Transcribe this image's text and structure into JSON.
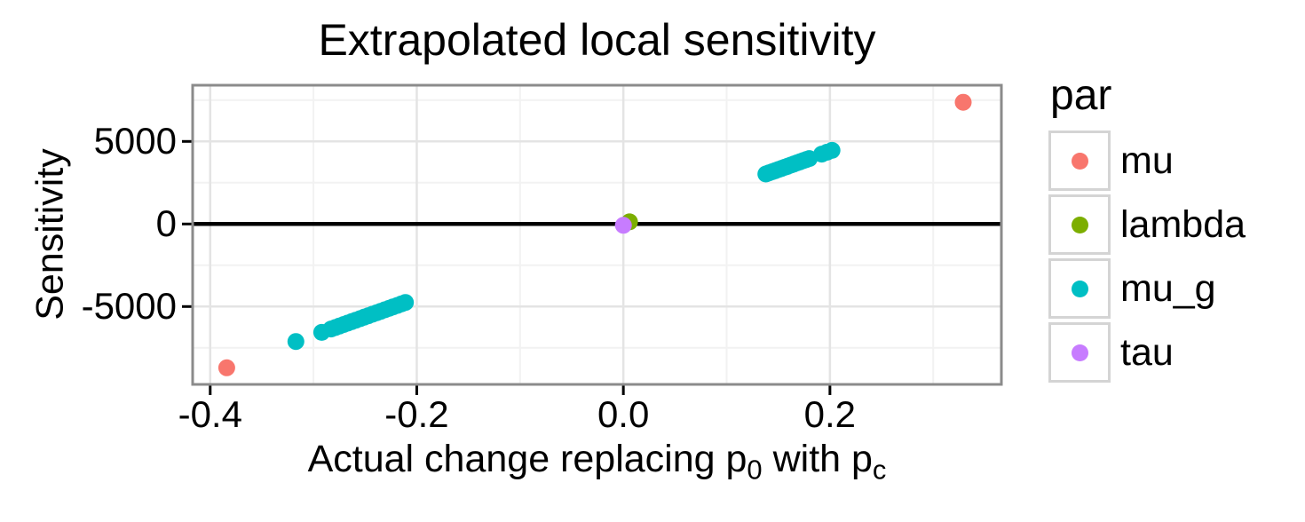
{
  "chart_data": {
    "type": "scatter",
    "title": "Extrapolated local sensitivity",
    "xlabel": "Actual change replacing p0 with pc",
    "xlabel_parts": {
      "pre": "Actual change replacing p",
      "sub1": "0",
      "mid": " with p",
      "sub2": "c"
    },
    "ylabel": "Sensitivity",
    "xlim": [
      -0.417,
      0.366
    ],
    "ylim": [
      -9715,
      8403
    ],
    "x_ticks": {
      "values": [
        -0.4,
        -0.2,
        0.0,
        0.2
      ],
      "labels": [
        "-0.4",
        "-0.2",
        "0.0",
        "0.2"
      ],
      "minor": [
        -0.3,
        -0.1,
        0.1,
        0.3
      ]
    },
    "y_ticks": {
      "values": [
        5000,
        0,
        -5000
      ],
      "labels": [
        "5000",
        "0",
        "-5000"
      ],
      "minor": [
        7500,
        2500,
        -2500,
        -7500
      ]
    },
    "hlines": [
      0
    ],
    "grid": "on",
    "legend_position": "right",
    "series": [
      {
        "name": "mu",
        "color": "#F8766D",
        "points": [
          [
            -0.384,
            -8710
          ],
          [
            0.329,
            7370
          ]
        ]
      },
      {
        "name": "lambda",
        "color": "#7CAE00",
        "points": [
          [
            0.006,
            130
          ]
        ]
      },
      {
        "name": "mu_g",
        "color": "#00BFC4",
        "points": [
          [
            -0.317,
            -7119
          ],
          [
            -0.292,
            -6562
          ],
          [
            -0.283,
            -6361
          ],
          [
            -0.279,
            -6272
          ],
          [
            -0.275,
            -6183
          ],
          [
            -0.271,
            -6093
          ],
          [
            -0.267,
            -6004
          ],
          [
            -0.263,
            -5915
          ],
          [
            -0.259,
            -5826
          ],
          [
            -0.255,
            -5737
          ],
          [
            -0.251,
            -5647
          ],
          [
            -0.247,
            -5558
          ],
          [
            -0.243,
            -5469
          ],
          [
            -0.239,
            -5380
          ],
          [
            -0.235,
            -5291
          ],
          [
            -0.231,
            -5201
          ],
          [
            -0.227,
            -5112
          ],
          [
            -0.223,
            -5023
          ],
          [
            -0.219,
            -4934
          ],
          [
            -0.215,
            -4845
          ],
          [
            -0.211,
            -4755
          ],
          [
            0.138,
            3027
          ],
          [
            0.141,
            3094
          ],
          [
            0.144,
            3161
          ],
          [
            0.147,
            3228
          ],
          [
            0.15,
            3295
          ],
          [
            0.153,
            3362
          ],
          [
            0.156,
            3429
          ],
          [
            0.159,
            3496
          ],
          [
            0.162,
            3563
          ],
          [
            0.165,
            3630
          ],
          [
            0.168,
            3697
          ],
          [
            0.171,
            3764
          ],
          [
            0.174,
            3831
          ],
          [
            0.177,
            3898
          ],
          [
            0.18,
            3964
          ],
          [
            0.192,
            4232
          ],
          [
            0.197,
            4343
          ],
          [
            0.202,
            4455
          ]
        ]
      },
      {
        "name": "tau",
        "color": "#C77CFF",
        "points": [
          [
            0.0,
            -80
          ]
        ]
      }
    ]
  },
  "legend": {
    "title": "par",
    "items": [
      {
        "label": "mu",
        "color": "#F8766D"
      },
      {
        "label": "lambda",
        "color": "#7CAE00"
      },
      {
        "label": "mu_g",
        "color": "#00BFC4"
      },
      {
        "label": "tau",
        "color": "#C77CFF"
      }
    ]
  },
  "style": {
    "panel_border_color": "#8B8B8B",
    "grid_major_color": "#E4E4E4",
    "grid_minor_color": "#F2F2F2",
    "zero_line_color": "#000000",
    "tick_color": "#000000"
  }
}
